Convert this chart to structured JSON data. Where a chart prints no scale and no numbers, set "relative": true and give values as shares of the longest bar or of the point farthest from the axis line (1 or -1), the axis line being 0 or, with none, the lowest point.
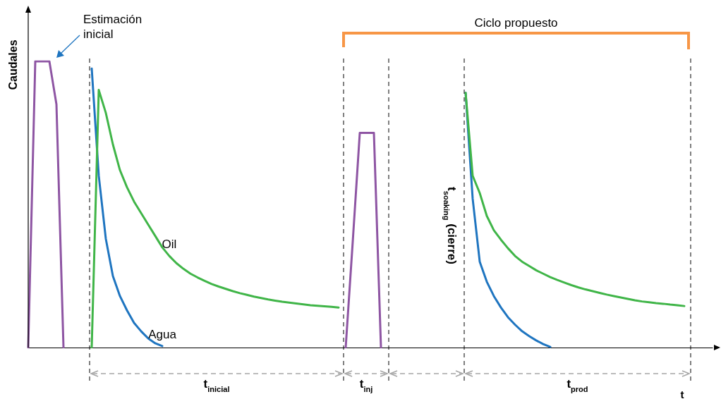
{
  "chart_data": {
    "type": "line",
    "relative": true,
    "ylabel": "Caudales",
    "marker": "none",
    "line_style": "solid",
    "categories": [
      null,
      null,
      null,
      null,
      null,
      null,
      null,
      null,
      null,
      null,
      null,
      null,
      null,
      null,
      null,
      null,
      null,
      null,
      null,
      null,
      null,
      null,
      null,
      null,
      null,
      null,
      null,
      null,
      null,
      null,
      null,
      null,
      null,
      null,
      null,
      null,
      null,
      null,
      null,
      null,
      null,
      null,
      null,
      null,
      null,
      null,
      null,
      null,
      null,
      null,
      null,
      null,
      null,
      null,
      null,
      null,
      null,
      null,
      null,
      null,
      null,
      null,
      null,
      null,
      null,
      null,
      null,
      null,
      null,
      null,
      null,
      null,
      null,
      null,
      null,
      null,
      null,
      null,
      null,
      null,
      null,
      null,
      null,
      null,
      null,
      null,
      null,
      null,
      null,
      null,
      null,
      null,
      null,
      null,
      null,
      null,
      null,
      null
    ],
    "series": [
      {
        "color": "#8e55a3",
        "values": [
          0,
          1,
          1,
          1,
          0.85,
          0,
          null,
          null,
          null,
          null,
          null,
          null,
          null,
          null,
          null,
          null,
          null,
          null,
          null,
          null,
          null,
          null,
          null,
          null,
          null,
          null,
          null,
          null,
          null,
          null,
          null,
          null,
          null,
          null,
          null,
          null,
          null,
          null,
          null,
          null,
          null,
          null,
          null,
          null,
          null,
          null,
          null,
          null,
          null,
          null,
          null,
          null,
          null,
          null,
          null,
          null,
          null,
          null,
          null,
          null,
          null,
          null,
          null,
          null,
          null,
          null,
          null,
          null,
          null,
          null,
          null,
          null,
          null,
          null,
          null,
          null,
          null,
          null,
          null,
          null,
          null,
          null,
          null,
          null,
          null,
          null,
          null,
          null,
          null,
          null,
          null,
          null,
          null,
          null,
          null,
          null,
          null,
          null
        ]
      },
      {
        "color": "#8e55a3",
        "values": [
          null,
          null,
          null,
          null,
          null,
          null,
          null,
          null,
          null,
          null,
          null,
          null,
          null,
          null,
          null,
          null,
          null,
          null,
          null,
          null,
          null,
          null,
          null,
          null,
          null,
          null,
          null,
          null,
          null,
          null,
          null,
          null,
          null,
          null,
          null,
          null,
          null,
          null,
          null,
          null,
          null,
          null,
          null,
          null,
          null,
          0,
          0.37,
          0.75,
          0.75,
          0.75,
          0,
          null,
          null,
          null,
          null,
          null,
          null,
          null,
          null,
          null,
          null,
          null,
          null,
          null,
          null,
          null,
          null,
          null,
          null,
          null,
          null,
          null,
          null,
          null,
          null,
          null,
          null,
          null,
          null,
          null,
          null,
          null,
          null,
          null,
          null,
          null,
          null,
          null,
          null,
          null,
          null,
          null,
          null,
          null,
          null,
          null,
          null,
          null
        ]
      },
      {
        "name": "Agua",
        "color": "#1f75c0",
        "values": [
          null,
          null,
          null,
          null,
          null,
          null,
          null,
          null,
          null,
          0.975,
          0.6,
          0.38,
          0.25,
          0.18,
          0.13,
          0.086,
          0.057,
          0.032,
          0.015,
          0.005,
          null,
          null,
          null,
          null,
          null,
          null,
          null,
          null,
          null,
          null,
          null,
          null,
          null,
          null,
          null,
          null,
          null,
          null,
          null,
          null,
          null,
          null,
          null,
          null,
          null,
          null,
          null,
          null,
          null,
          null,
          null,
          null,
          null,
          null,
          null,
          null,
          null,
          null,
          null,
          null,
          null,
          null,
          null,
          null,
          null,
          null,
          null,
          null,
          null,
          null,
          null,
          null,
          null,
          null,
          null,
          null,
          null,
          null,
          null,
          null,
          null,
          null,
          null,
          null,
          null,
          null,
          null,
          null,
          null,
          null,
          null,
          null,
          null,
          null,
          null,
          null,
          null,
          null
        ]
      },
      {
        "color": "#1f75c0",
        "values": [
          null,
          null,
          null,
          null,
          null,
          null,
          null,
          null,
          null,
          null,
          null,
          null,
          null,
          null,
          null,
          null,
          null,
          null,
          null,
          null,
          null,
          null,
          null,
          null,
          null,
          null,
          null,
          null,
          null,
          null,
          null,
          null,
          null,
          null,
          null,
          null,
          null,
          null,
          null,
          null,
          null,
          null,
          null,
          null,
          null,
          null,
          null,
          null,
          null,
          null,
          null,
          null,
          null,
          null,
          null,
          null,
          null,
          null,
          null,
          null,
          null,
          null,
          0.89,
          0.52,
          0.3,
          0.23,
          0.18,
          0.14,
          0.106,
          0.08,
          0.057,
          0.04,
          0.025,
          0.012,
          0.002,
          null,
          null,
          null,
          null,
          null,
          null,
          null,
          null,
          null,
          null,
          null,
          null,
          null,
          null,
          null,
          null,
          null,
          null,
          null,
          null,
          null,
          null,
          null
        ]
      },
      {
        "name": "Oil",
        "color": "#40b548",
        "values": [
          null,
          null,
          null,
          null,
          null,
          null,
          null,
          null,
          null,
          0,
          0.9,
          0.82,
          0.71,
          0.62,
          0.56,
          0.51,
          0.47,
          0.43,
          0.39,
          0.35,
          0.32,
          0.295,
          0.275,
          0.258,
          0.245,
          0.233,
          0.222,
          0.213,
          0.205,
          0.197,
          0.19,
          0.184,
          0.178,
          0.173,
          0.168,
          0.164,
          0.16,
          0.157,
          0.154,
          0.151,
          0.148,
          0.146,
          0.144,
          0.142,
          0.14,
          null,
          null,
          null,
          null,
          null,
          null,
          null,
          null,
          null,
          null,
          null,
          null,
          null,
          null,
          null,
          null,
          null,
          null,
          null,
          null,
          null,
          null,
          null,
          null,
          null,
          null,
          null,
          null,
          null,
          null,
          null,
          null,
          null,
          null,
          null,
          null,
          null,
          null,
          null,
          null,
          null,
          null,
          null,
          null,
          null,
          null,
          null,
          null,
          null,
          null,
          null,
          null,
          null
        ]
      },
      {
        "color": "#40b548",
        "values": [
          null,
          null,
          null,
          null,
          null,
          null,
          null,
          null,
          null,
          null,
          null,
          null,
          null,
          null,
          null,
          null,
          null,
          null,
          null,
          null,
          null,
          null,
          null,
          null,
          null,
          null,
          null,
          null,
          null,
          null,
          null,
          null,
          null,
          null,
          null,
          null,
          null,
          null,
          null,
          null,
          null,
          null,
          null,
          null,
          null,
          null,
          null,
          null,
          null,
          null,
          null,
          null,
          null,
          null,
          null,
          null,
          null,
          null,
          null,
          null,
          null,
          null,
          0.89,
          0.6,
          0.54,
          0.46,
          0.41,
          0.377,
          0.347,
          0.32,
          0.3,
          0.285,
          0.27,
          0.258,
          0.246,
          0.236,
          0.227,
          0.218,
          0.21,
          0.203,
          0.197,
          0.191,
          0.185,
          0.18,
          0.175,
          0.17,
          0.165,
          0.161,
          0.158,
          0.155,
          0.153,
          0.15,
          0.148,
          0.145,
          null,
          null,
          null,
          null
        ]
      }
    ],
    "annotations": [
      "Estimación inicial",
      "Ciclo propuesto",
      "t$_{inicial}$",
      "t$_{inj}$",
      "t$_{soaking}$ (cierre)",
      "t$_{prod}$",
      "t"
    ]
  }
}
